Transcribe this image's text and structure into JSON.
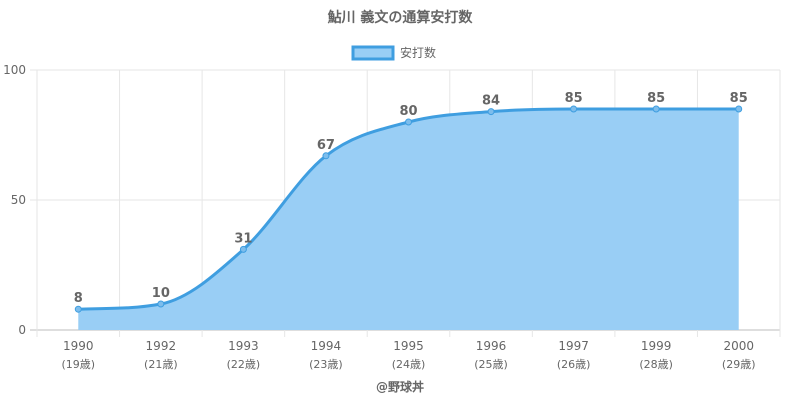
{
  "chart_data": {
    "type": "area",
    "title": "鮎川 義文の通算安打数",
    "legend": {
      "label": "安打数",
      "position": "top"
    },
    "categories": [
      "1990",
      "1992",
      "1993",
      "1994",
      "1995",
      "1996",
      "1997",
      "1999",
      "2000"
    ],
    "ages": [
      "(19歳)",
      "(21歳)",
      "(22歳)",
      "(23歳)",
      "(24歳)",
      "(25歳)",
      "(26歳)",
      "(28歳)",
      "(29歳)"
    ],
    "series": [
      {
        "name": "安打数",
        "values": [
          8,
          10,
          31,
          67,
          80,
          84,
          85,
          85,
          85
        ]
      }
    ],
    "ylim": [
      0,
      100
    ],
    "yticks": [
      0,
      50,
      100
    ],
    "grid": true,
    "colors": {
      "line": "#3f9ee0",
      "fill": "#99cef5",
      "grid": "#e6e6e6",
      "text": "#666666"
    }
  },
  "footer": {
    "credit": "@野球丼"
  }
}
